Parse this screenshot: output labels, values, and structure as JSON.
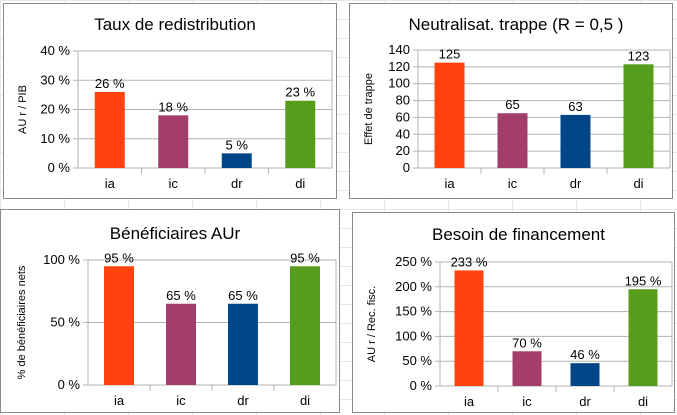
{
  "chart_data": [
    {
      "type": "bar",
      "title": "Taux de redistribution",
      "ylabel": "AU r / PIB",
      "categories": [
        "ia",
        "ic",
        "dr",
        "di"
      ],
      "values": [
        26,
        18,
        5,
        23
      ],
      "value_labels": [
        "26 %",
        "18 %",
        "5 %",
        "23 %"
      ],
      "ylim": [
        0,
        40
      ],
      "yticks": [
        0,
        10,
        20,
        30,
        40
      ],
      "ytick_labels": [
        "0 %",
        "10 %",
        "20 %",
        "30 %",
        "40 %"
      ],
      "grid": true
    },
    {
      "type": "bar",
      "title": "Neutralisat. trappe (R = 0,5 )",
      "ylabel": "Effet de trappe",
      "categories": [
        "ia",
        "ic",
        "dr",
        "di"
      ],
      "values": [
        125,
        65,
        63,
        123
      ],
      "value_labels": [
        "125",
        "65",
        "63",
        "123"
      ],
      "ylim": [
        0,
        140
      ],
      "yticks": [
        0,
        20,
        40,
        60,
        80,
        100,
        120,
        140
      ],
      "ytick_labels": [
        "0",
        "20",
        "40",
        "60",
        "80",
        "100",
        "120",
        "140"
      ],
      "grid": true
    },
    {
      "type": "bar",
      "title": "Bénéficiaires AUr",
      "ylabel": "% de bénéficiaires nets",
      "categories": [
        "ia",
        "ic",
        "dr",
        "di"
      ],
      "values": [
        95,
        65,
        65,
        95
      ],
      "value_labels": [
        "95 %",
        "65 %",
        "65 %",
        "95 %"
      ],
      "ylim": [
        0,
        100
      ],
      "yticks": [
        0,
        50,
        100
      ],
      "ytick_labels": [
        "0 %",
        "50 %",
        "100 %"
      ],
      "grid": true
    },
    {
      "type": "bar",
      "title": "Besoin de financement",
      "ylabel": "AU r / Rec. fisc.",
      "categories": [
        "ia",
        "ic",
        "dr",
        "di"
      ],
      "values": [
        233,
        70,
        46,
        195
      ],
      "value_labels": [
        "233 %",
        "70 %",
        "46 %",
        "195 %"
      ],
      "ylim": [
        0,
        250
      ],
      "yticks": [
        0,
        50,
        100,
        150,
        200,
        250
      ],
      "ytick_labels": [
        "0 %",
        "50 %",
        "100 %",
        "150 %",
        "200 %",
        "250 %"
      ],
      "grid": true
    }
  ],
  "colors": {
    "ia": "#ff420e",
    "ic": "#a33e6b",
    "dr": "#004586",
    "di": "#579d1c",
    "grid": "#b3b3b3",
    "plot_border": "#b3b3b3"
  }
}
